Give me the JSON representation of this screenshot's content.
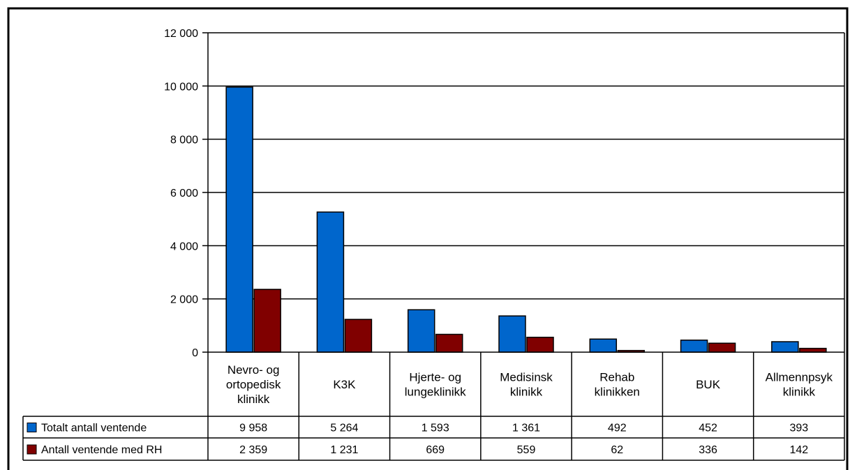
{
  "chart_data": {
    "type": "bar",
    "categories": [
      "Nevro- og ortopedisk klinikk",
      "K3K",
      "Hjerte- og lungeklinikk",
      "Medisinsk klinikk",
      "Rehab klinikken",
      "BUK",
      "Allmennpsyk klinikk"
    ],
    "category_lines": [
      [
        "Nevro- og",
        "ortopedisk",
        "klinikk"
      ],
      [
        "K3K"
      ],
      [
        "Hjerte- og",
        "lungeklinikk"
      ],
      [
        "Medisinsk",
        "klinikk"
      ],
      [
        "Rehab",
        "klinikken"
      ],
      [
        "BUK"
      ],
      [
        "Allmennpsyk",
        "klinikk"
      ]
    ],
    "series": [
      {
        "name": "Totalt antall ventende",
        "values": [
          9958,
          5264,
          1593,
          1361,
          492,
          452,
          393
        ],
        "labels": [
          "9 958",
          "5 264",
          "1 593",
          "1 361",
          "492",
          "452",
          "393"
        ],
        "color": "#0066CC"
      },
      {
        "name": "Antall ventende med RH",
        "values": [
          2359,
          1231,
          669,
          559,
          62,
          336,
          142
        ],
        "labels": [
          "2 359",
          "1 231",
          "669",
          "559",
          "62",
          "336",
          "142"
        ],
        "color": "#800000"
      }
    ],
    "ylim": [
      0,
      12000
    ],
    "yticks": [
      0,
      2000,
      4000,
      6000,
      8000,
      10000,
      12000
    ],
    "ytick_labels": [
      "0",
      "2 000",
      "4 000",
      "6 000",
      "8 000",
      "10 000",
      "12 000"
    ],
    "grid": true,
    "legend": "data-table"
  }
}
